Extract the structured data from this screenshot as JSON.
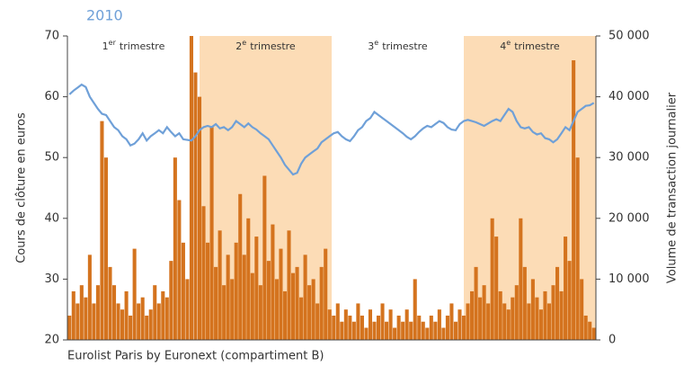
{
  "chart_data": {
    "type": "bar_line",
    "title": "2010",
    "source": "Eurolist Paris by Euronext (compartiment B)",
    "ylabel": "Cours de clôture en euros",
    "y2label": "Volume de transaction journalier",
    "quarters": [
      {
        "num": "1",
        "sup": "er",
        "text": "trimestre",
        "shaded": false
      },
      {
        "num": "2",
        "sup": "e",
        "text": "trimestre",
        "shaded": true
      },
      {
        "num": "3",
        "sup": "e",
        "text": "trimestre",
        "shaded": false
      },
      {
        "num": "4",
        "sup": "e",
        "text": "trimestre",
        "shaded": true
      }
    ],
    "shade_color": "#fcdcb6",
    "ylim": [
      20,
      70
    ],
    "yticks": [
      20,
      30,
      40,
      50,
      60,
      70
    ],
    "y2lim": [
      0,
      50000
    ],
    "y2ticks": [
      0,
      {
        "value": 10000,
        "label": "10 000"
      },
      {
        "value": 20000,
        "label": "20 000"
      },
      {
        "value": 30000,
        "label": "30 000"
      },
      {
        "value": 40000,
        "label": "40 000"
      },
      {
        "value": 50000,
        "label": "50 000"
      }
    ],
    "series": [
      {
        "type": "bar",
        "axis": "y2",
        "color": "#d4731e",
        "values": [
          4000,
          8000,
          6000,
          9000,
          7000,
          14000,
          6000,
          9000,
          36000,
          30000,
          12000,
          9000,
          6000,
          5000,
          8000,
          4000,
          15000,
          6000,
          7000,
          4000,
          5000,
          9000,
          6000,
          8000,
          7000,
          13000,
          30000,
          23000,
          16000,
          10000,
          50000,
          44000,
          40000,
          22000,
          16000,
          35000,
          12000,
          18000,
          9000,
          14000,
          10000,
          16000,
          24000,
          14000,
          20000,
          11000,
          17000,
          9000,
          27000,
          13000,
          19000,
          10000,
          15000,
          8000,
          18000,
          11000,
          12000,
          7000,
          14000,
          9000,
          10000,
          6000,
          12000,
          15000,
          5000,
          4000,
          6000,
          3000,
          5000,
          4000,
          3000,
          6000,
          4000,
          2000,
          5000,
          3000,
          4000,
          6000,
          3000,
          5000,
          2000,
          4000,
          3000,
          5000,
          3000,
          10000,
          4000,
          3000,
          2000,
          4000,
          3000,
          5000,
          2000,
          4000,
          6000,
          3000,
          5000,
          4000,
          6000,
          8000,
          12000,
          7000,
          9000,
          6000,
          20000,
          17000,
          8000,
          6000,
          5000,
          7000,
          9000,
          20000,
          12000,
          6000,
          10000,
          7000,
          5000,
          8000,
          6000,
          9000,
          12000,
          8000,
          17000,
          13000,
          46000,
          30000,
          10000,
          4000,
          3000,
          2000
        ]
      },
      {
        "type": "line",
        "axis": "y",
        "color": "#6fa0d8",
        "values": [
          60.4,
          61,
          61.5,
          62,
          61.6,
          60,
          59,
          58,
          57.2,
          57,
          56,
          55,
          54.5,
          53.5,
          53,
          52,
          52.3,
          53,
          54,
          52.8,
          53.5,
          54,
          54.5,
          54,
          55,
          54.2,
          53.5,
          54,
          53,
          52.9,
          52.8,
          53.5,
          54.5,
          55,
          55.2,
          55,
          55.5,
          54.8,
          55,
          54.5,
          55,
          56,
          55.5,
          55,
          55.6,
          55,
          54.6,
          54,
          53.5,
          53,
          52,
          51,
          50,
          48.8,
          48,
          47.2,
          47.5,
          49,
          50,
          50.5,
          51,
          51.5,
          52.5,
          53,
          53.5,
          54,
          54.2,
          53.5,
          53,
          52.7,
          53.5,
          54.5,
          55,
          56,
          56.5,
          57.5,
          57,
          56.5,
          56,
          55.5,
          55,
          54.5,
          54,
          53.4,
          53,
          53.5,
          54.2,
          54.8,
          55.2,
          55,
          55.5,
          56,
          55.7,
          55,
          54.6,
          54.5,
          55.5,
          56,
          56.2,
          56,
          55.8,
          55.5,
          55.2,
          55.6,
          56,
          56.3,
          56,
          57,
          58,
          57.5,
          56,
          55,
          54.8,
          55,
          54.2,
          53.8,
          54,
          53.2,
          53,
          52.5,
          53,
          54,
          55,
          54.5,
          56,
          57.5,
          58,
          58.5,
          58.6,
          59
        ]
      }
    ]
  }
}
